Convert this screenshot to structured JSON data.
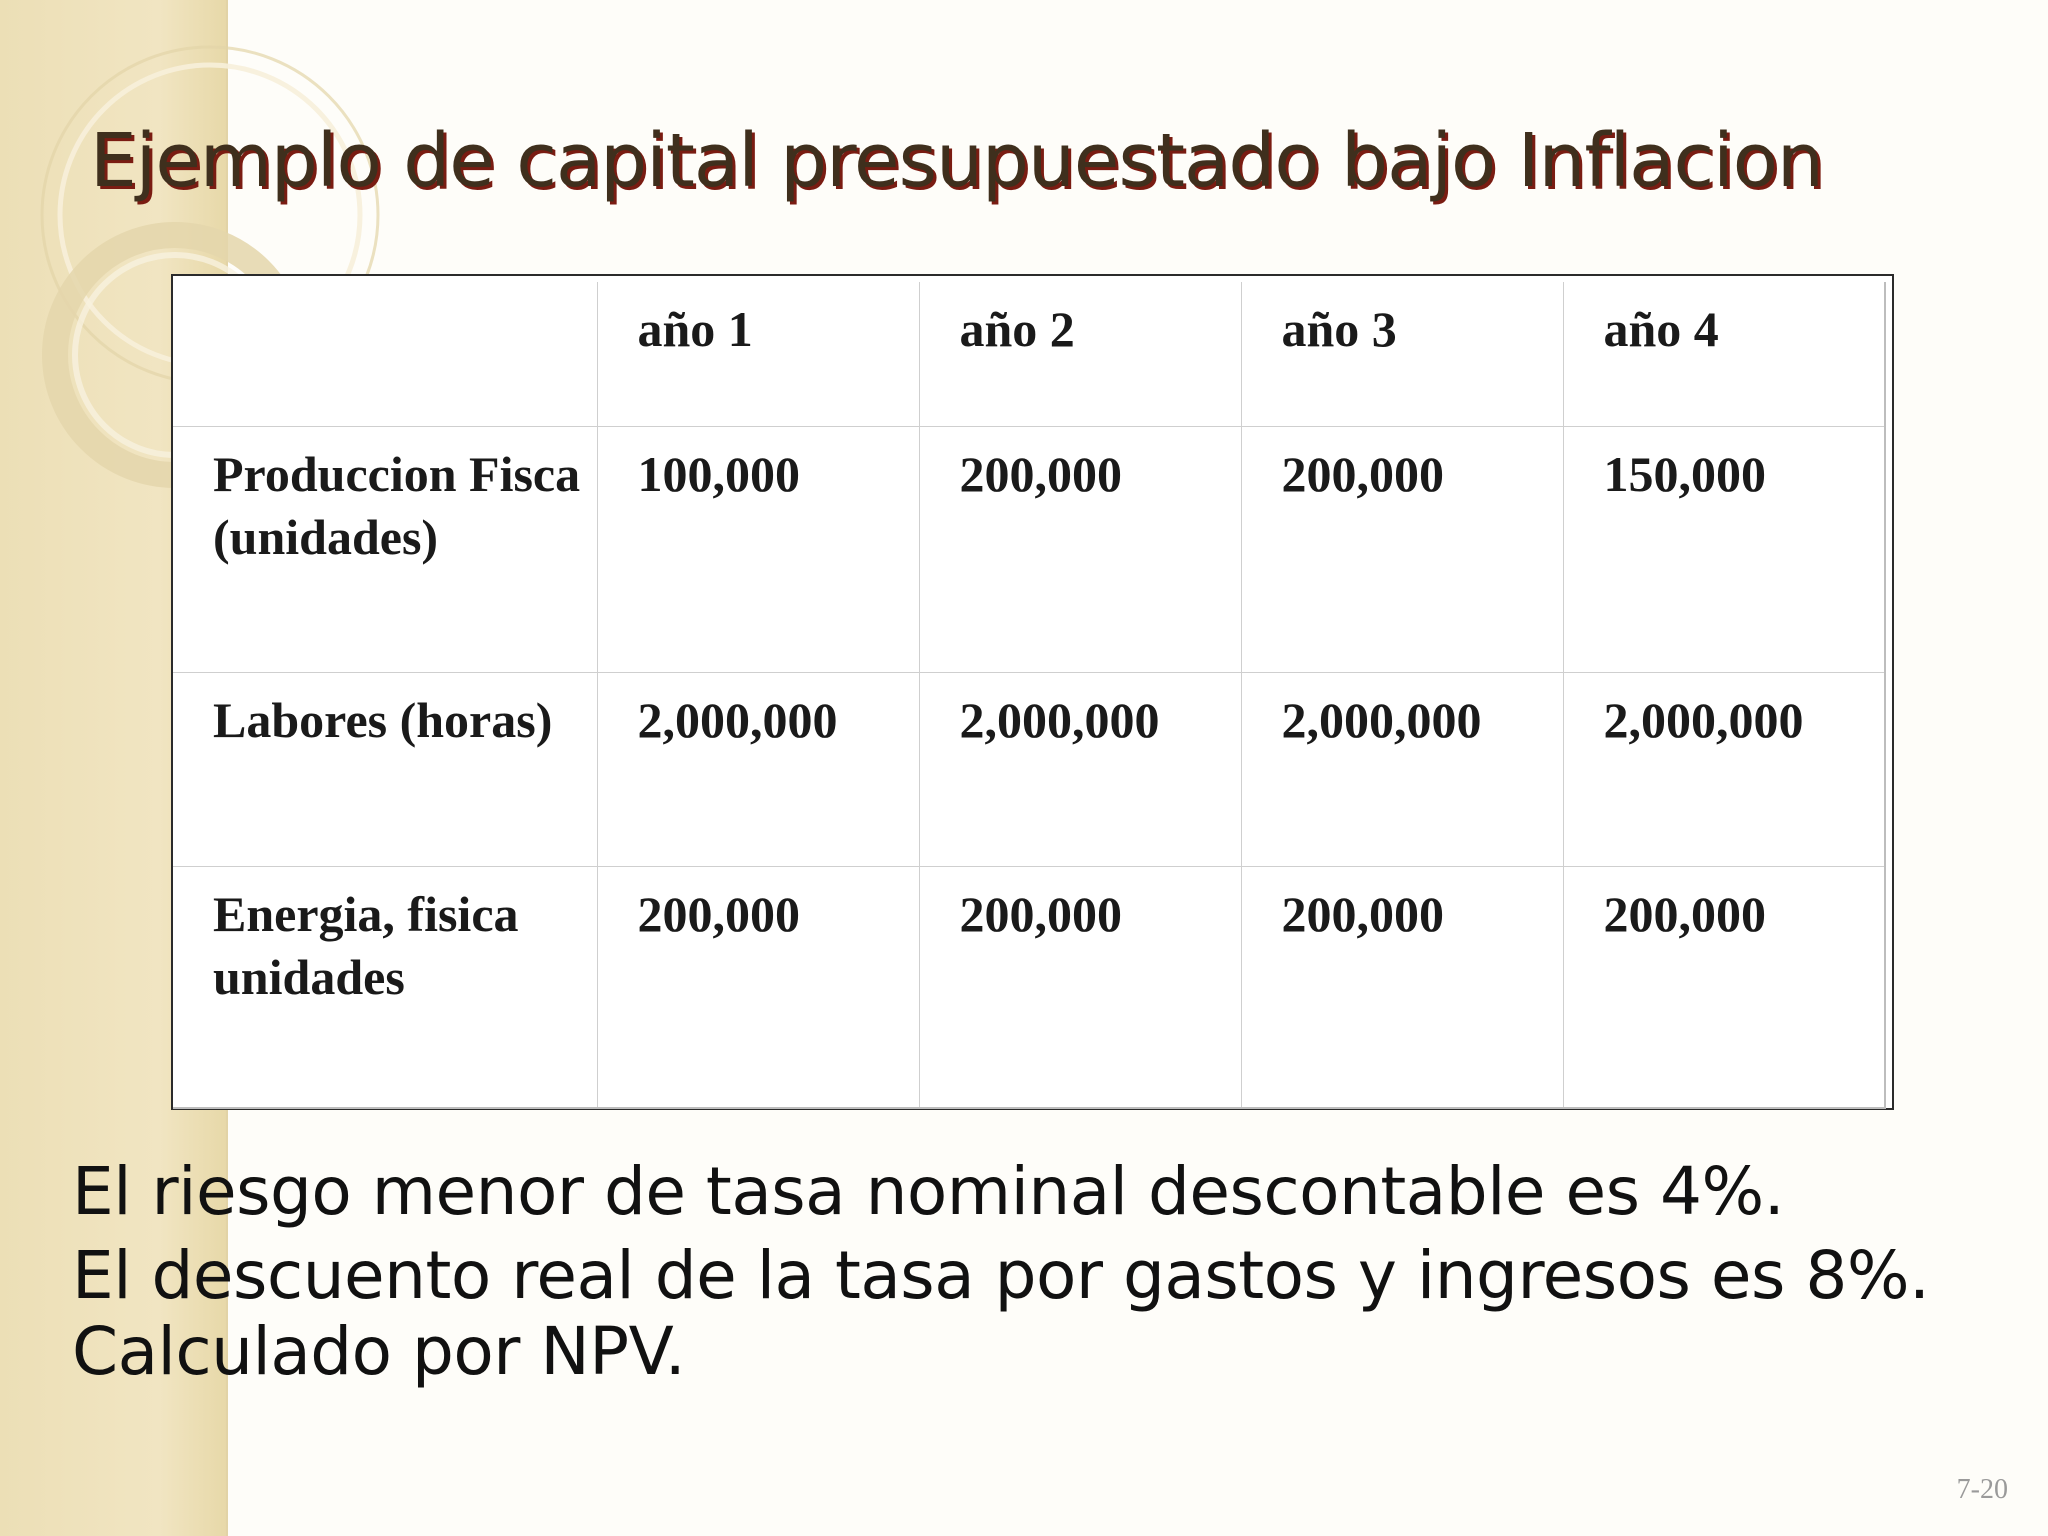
{
  "slide": {
    "title": "Ejemplo de capital presupuestado bajo Inflacion",
    "number": "7-20"
  },
  "table": {
    "headers": [
      "",
      "año 1",
      "año 2",
      "año 3",
      "año 4"
    ],
    "rows": [
      {
        "label": "Produccion Fisca (unidades)",
        "values": [
          "100,000",
          "200,000",
          "200,000",
          "150,000"
        ]
      },
      {
        "label": "Labores (horas)",
        "values": [
          "2,000,000",
          "2,000,000",
          "2,000,000",
          "2,000,000"
        ]
      },
      {
        "label": "Energia, fisica unidades",
        "values": [
          "200,000",
          "200,000",
          "200,000",
          "200,000"
        ]
      }
    ]
  },
  "notes": [
    "El riesgo menor de tasa nominal descontable es 4%.",
    "El descuento real de la tasa por gastos y ingresos es 8%.",
    "Calculado por NPV."
  ],
  "colors": {
    "background": "#fefdf9",
    "side_band": "#ecdfb6",
    "title_text": "#3f2f1d",
    "title_shadow": "#7a1c12",
    "body_text": "#111111"
  }
}
